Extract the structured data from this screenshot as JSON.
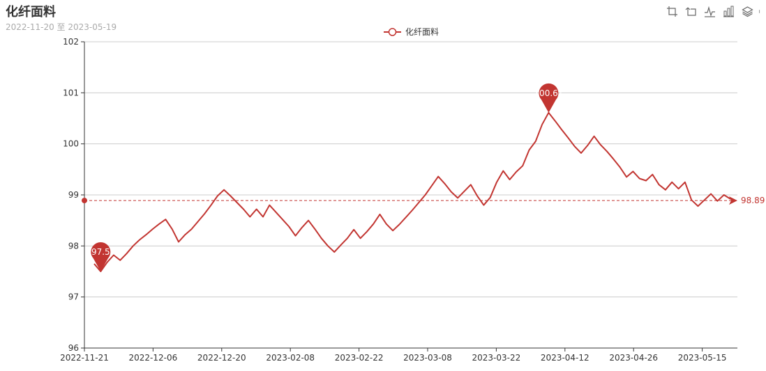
{
  "header": {
    "title": "化纤面料",
    "subtitle": "2022-11-20 至 2023-05-19"
  },
  "toolbox": {
    "icons": [
      "zoom-icon",
      "zoom-reset-icon",
      "line-chart-icon",
      "bar-chart-icon",
      "stack-icon",
      "more-icon"
    ]
  },
  "colors": {
    "series": "#c23531",
    "grid": "#cccccc",
    "axis": "#333333",
    "subtitle": "#aaaaaa"
  },
  "chart_data": {
    "type": "line",
    "title": "化纤面料",
    "subtitle": "2022-11-20 至 2023-05-19",
    "legend": [
      "化纤面料"
    ],
    "legend_position": "top-center",
    "ylim": [
      96,
      102
    ],
    "yticks": [
      96,
      97,
      98,
      99,
      100,
      101,
      102
    ],
    "xticks": [
      "2022-11-21",
      "2022-12-06",
      "2022-12-20",
      "2023-02-08",
      "2023-02-22",
      "2023-03-08",
      "2023-03-22",
      "2023-04-12",
      "2023-04-26",
      "2023-05-15"
    ],
    "grid": true,
    "series": [
      {
        "name": "化纤面料",
        "values": [
          97.65,
          97.5,
          97.68,
          97.82,
          97.72,
          97.85,
          98.0,
          98.12,
          98.22,
          98.33,
          98.43,
          98.52,
          98.33,
          98.08,
          98.22,
          98.33,
          98.48,
          98.63,
          98.8,
          98.98,
          99.1,
          98.98,
          98.85,
          98.72,
          98.57,
          98.72,
          98.57,
          98.8,
          98.66,
          98.52,
          98.38,
          98.2,
          98.36,
          98.5,
          98.33,
          98.15,
          98.0,
          97.88,
          98.02,
          98.15,
          98.32,
          98.15,
          98.28,
          98.43,
          98.62,
          98.43,
          98.3,
          98.42,
          98.56,
          98.7,
          98.85,
          99.0,
          99.18,
          99.36,
          99.22,
          99.06,
          98.94,
          99.07,
          99.2,
          98.98,
          98.8,
          98.95,
          99.25,
          99.47,
          99.3,
          99.45,
          99.57,
          99.88,
          100.05,
          100.38,
          100.61,
          100.45,
          100.28,
          100.12,
          99.95,
          99.82,
          99.97,
          100.15,
          99.98,
          99.85,
          99.7,
          99.54,
          99.35,
          99.46,
          99.32,
          99.28,
          99.4,
          99.2,
          99.1,
          99.25,
          99.12,
          99.25,
          98.9,
          98.78,
          98.9,
          99.02,
          98.88,
          99.0,
          98.92
        ]
      }
    ],
    "mark_points": [
      {
        "type": "max",
        "value": 100.61,
        "label": "100.61"
      },
      {
        "type": "min",
        "value": 97.5,
        "label": "97.5"
      }
    ],
    "mark_line": {
      "type": "average",
      "value": 98.89,
      "label": "98.89"
    }
  }
}
